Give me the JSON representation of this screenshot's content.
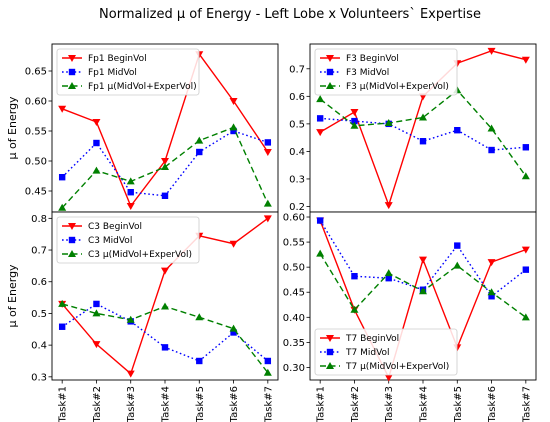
{
  "figure_title": "Normalized μ of Energy - Left Lobe x Volunteers` Expertise",
  "chart_data": [
    {
      "type": "line",
      "panel": "top-left",
      "categories": [
        "Task#1",
        "Task#2",
        "Task#3",
        "Task#4",
        "Task#5",
        "Task#6",
        "Task#7"
      ],
      "ylabel": "μ of Energy",
      "ylim": [
        0.415,
        0.695
      ],
      "yticks": [
        0.45,
        0.5,
        0.55,
        0.6,
        0.65
      ],
      "ytick_labels": [
        "0.45",
        "0.50",
        "0.55",
        "0.60",
        "0.65"
      ],
      "show_x_ticklabels": false,
      "legend_position": "top-left",
      "series": [
        {
          "name": "Fp1 BeginVol",
          "values": [
            0.587,
            0.565,
            0.425,
            0.5,
            0.678,
            0.6,
            0.515
          ],
          "color": "#ff0000",
          "style": "solid",
          "marker": "triangle-down"
        },
        {
          "name": "Fp1 MidVol",
          "values": [
            0.473,
            0.53,
            0.448,
            0.442,
            0.515,
            0.55,
            0.531
          ],
          "color": "#0000ff",
          "style": "dotted",
          "marker": "square"
        },
        {
          "name": "Fp1 μ(MidVol+ExperVol)",
          "values": [
            0.422,
            0.484,
            0.466,
            0.49,
            0.534,
            0.556,
            0.429
          ],
          "color": "#008000",
          "style": "dashed",
          "marker": "triangle-up"
        }
      ]
    },
    {
      "type": "line",
      "panel": "top-right",
      "categories": [
        "Task#1",
        "Task#2",
        "Task#3",
        "Task#4",
        "Task#5",
        "Task#6",
        "Task#7"
      ],
      "ylabel": "",
      "ylim": [
        0.18,
        0.79
      ],
      "yticks": [
        0.2,
        0.3,
        0.4,
        0.5,
        0.6,
        0.7
      ],
      "ytick_labels": [
        "0.2",
        "0.3",
        "0.4",
        "0.5",
        "0.6",
        "0.7"
      ],
      "show_x_ticklabels": false,
      "legend_position": "top-left",
      "series": [
        {
          "name": "F3 BeginVol",
          "values": [
            0.47,
            0.543,
            0.205,
            0.6,
            0.72,
            0.765,
            0.733
          ],
          "color": "#ff0000",
          "style": "solid",
          "marker": "triangle-down"
        },
        {
          "name": "F3 MidVol",
          "values": [
            0.52,
            0.51,
            0.5,
            0.437,
            0.477,
            0.405,
            0.415
          ],
          "color": "#0000ff",
          "style": "dotted",
          "marker": "square"
        },
        {
          "name": "F3 μ(MidVol+ExperVol)",
          "values": [
            0.59,
            0.493,
            0.503,
            0.523,
            0.622,
            0.483,
            0.31
          ],
          "color": "#008000",
          "style": "dashed",
          "marker": "triangle-up"
        }
      ]
    },
    {
      "type": "line",
      "panel": "bottom-left",
      "categories": [
        "Task#1",
        "Task#2",
        "Task#3",
        "Task#4",
        "Task#5",
        "Task#6",
        "Task#7"
      ],
      "ylabel": "μ of Energy",
      "ylim": [
        0.29,
        0.82
      ],
      "yticks": [
        0.3,
        0.4,
        0.5,
        0.6,
        0.7,
        0.8
      ],
      "ytick_labels": [
        "0.3",
        "0.4",
        "0.5",
        "0.6",
        "0.7",
        "0.8"
      ],
      "show_x_ticklabels": true,
      "legend_position": "top-left",
      "series": [
        {
          "name": "C3 BeginVol",
          "values": [
            0.53,
            0.403,
            0.31,
            0.635,
            0.745,
            0.72,
            0.8
          ],
          "color": "#ff0000",
          "style": "solid",
          "marker": "triangle-down"
        },
        {
          "name": "C3 MidVol",
          "values": [
            0.458,
            0.53,
            0.475,
            0.393,
            0.35,
            0.44,
            0.35
          ],
          "color": "#0000ff",
          "style": "dotted",
          "marker": "square"
        },
        {
          "name": "C3 μ(MidVol+ExperVol)",
          "values": [
            0.53,
            0.5,
            0.48,
            0.522,
            0.488,
            0.452,
            0.313
          ],
          "color": "#008000",
          "style": "dashed",
          "marker": "triangle-up"
        }
      ]
    },
    {
      "type": "line",
      "panel": "bottom-right",
      "categories": [
        "Task#1",
        "Task#2",
        "Task#3",
        "Task#4",
        "Task#5",
        "Task#6",
        "Task#7"
      ],
      "ylabel": "",
      "ylim": [
        0.275,
        0.61
      ],
      "yticks": [
        0.3,
        0.35,
        0.4,
        0.45,
        0.5,
        0.55,
        0.6
      ],
      "ytick_labels": [
        "0.30",
        "0.35",
        "0.40",
        "0.45",
        "0.50",
        "0.55",
        "0.60"
      ],
      "show_x_ticklabels": true,
      "legend_position": "bottom-left",
      "series": [
        {
          "name": "T7 BeginVol",
          "values": [
            0.593,
            0.415,
            0.28,
            0.515,
            0.34,
            0.51,
            0.535
          ],
          "color": "#ff0000",
          "style": "solid",
          "marker": "triangle-down"
        },
        {
          "name": "T7 MidVol",
          "values": [
            0.593,
            0.482,
            0.478,
            0.455,
            0.543,
            0.442,
            0.495
          ],
          "color": "#0000ff",
          "style": "dotted",
          "marker": "square"
        },
        {
          "name": "T7 μ(MidVol+ExperVol)",
          "values": [
            0.527,
            0.415,
            0.488,
            0.452,
            0.503,
            0.45,
            0.4
          ],
          "color": "#008000",
          "style": "dashed",
          "marker": "triangle-up"
        }
      ]
    }
  ]
}
